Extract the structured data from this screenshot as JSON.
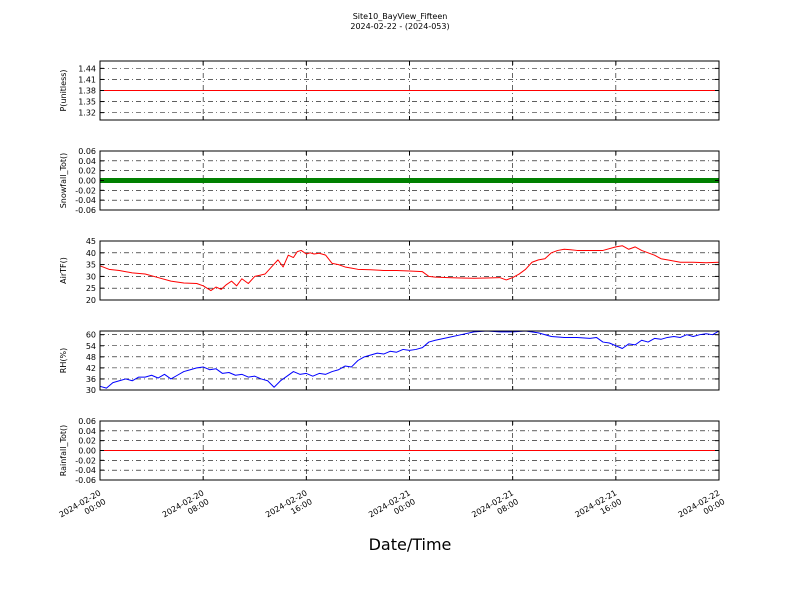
{
  "title": "Site10_BayView_Fifteen",
  "subtitle": "2024-02-22 - (2024-053)",
  "xlabel": "Date/Time",
  "x_ticks": [
    {
      "hours": 0,
      "line1": "2024-02-20",
      "line2": "00:00"
    },
    {
      "hours": 8,
      "line1": "2024-02-20",
      "line2": "08:00"
    },
    {
      "hours": 16,
      "line1": "2024-02-20",
      "line2": "16:00"
    },
    {
      "hours": 24,
      "line1": "2024-02-21",
      "line2": "00:00"
    },
    {
      "hours": 32,
      "line1": "2024-02-21",
      "line2": "08:00"
    },
    {
      "hours": 40,
      "line1": "2024-02-21",
      "line2": "16:00"
    },
    {
      "hours": 48,
      "line1": "2024-02-22",
      "line2": "00:00"
    }
  ],
  "chart_data": [
    {
      "type": "line",
      "ylabel": "P(unitless)",
      "ylim": [
        1.3,
        1.46
      ],
      "yticks": [
        "1.32",
        "1.35",
        "1.38",
        "1.41",
        "1.44"
      ],
      "grid": true,
      "color": "#ff0000",
      "series": [
        {
          "x": [
            0,
            48
          ],
          "y": [
            1.38,
            1.38
          ]
        }
      ]
    },
    {
      "type": "line",
      "ylabel": "Snowfall_Tot()",
      "ylim": [
        -0.06,
        0.06
      ],
      "yticks": [
        "-0.06",
        "-0.04",
        "-0.02",
        "0.00",
        "0.02",
        "0.04",
        "0.06"
      ],
      "grid": true,
      "color": "#008000",
      "marker": "dots",
      "series": [
        {
          "x": [
            0,
            48
          ],
          "y": [
            0,
            0
          ]
        }
      ]
    },
    {
      "type": "line",
      "ylabel": "AirTF()",
      "ylim": [
        20,
        45
      ],
      "yticks": [
        "20",
        "25",
        "30",
        "35",
        "40",
        "45"
      ],
      "grid": true,
      "color": "#ff0000",
      "series": [
        {
          "x": [
            0,
            0.7,
            1.5,
            2.5,
            3.5,
            4.5,
            5.5,
            6.5,
            7.5,
            8,
            8.6,
            9,
            9.4,
            9.8,
            10.2,
            10.6,
            11,
            11.5,
            12,
            12.4,
            12.8,
            13.3,
            13.8,
            14.2,
            14.6,
            15,
            15.3,
            15.6,
            16,
            16.3,
            16.6,
            17,
            17.5,
            18,
            18.5,
            19,
            19.5,
            20,
            21,
            22,
            23,
            24,
            25,
            25.5,
            26,
            27,
            28,
            29,
            30,
            31,
            31.5,
            32,
            32.5,
            33,
            33.5,
            34,
            34.5,
            35,
            35.5,
            36,
            36.5,
            37,
            38,
            39,
            40,
            40.5,
            41,
            41.5,
            42,
            42.5,
            43,
            43.5,
            44,
            45,
            46,
            47,
            48
          ],
          "y": [
            34.5,
            33,
            32.5,
            31.5,
            31,
            29.5,
            28,
            27.2,
            27,
            26,
            24,
            25.5,
            24.5,
            26.5,
            28,
            26,
            29,
            27,
            30,
            30.5,
            31,
            34,
            37,
            34,
            39,
            38,
            40.5,
            41,
            39.5,
            40,
            39.5,
            39.8,
            39,
            35.5,
            35,
            34,
            33.5,
            33,
            32.8,
            32.5,
            32.5,
            32.3,
            32,
            30,
            29.7,
            29.5,
            29.3,
            29.2,
            29.3,
            29.5,
            28.5,
            29.5,
            31,
            33,
            36,
            37,
            37.5,
            40,
            41,
            41.5,
            41.3,
            41,
            41,
            41,
            42.5,
            43,
            41.5,
            42.5,
            41,
            40,
            39,
            37.5,
            37,
            36,
            36,
            35.8,
            36
          ]
        }
      ]
    },
    {
      "type": "line",
      "ylabel": "RH(%)",
      "ylim": [
        30,
        62
      ],
      "yticks": [
        "30",
        "36",
        "42",
        "48",
        "54",
        "60"
      ],
      "grid": true,
      "color": "#0000ff",
      "series": [
        {
          "x": [
            0,
            0.5,
            1,
            1.5,
            2,
            2.5,
            3,
            3.5,
            4,
            4.5,
            5,
            5.5,
            6,
            6.5,
            7,
            7.5,
            8,
            8.5,
            9,
            9.5,
            10,
            10.5,
            11,
            11.5,
            12,
            12.5,
            13,
            13.5,
            14,
            14.5,
            15,
            15.5,
            16,
            16.5,
            17,
            17.5,
            18,
            18.5,
            19,
            19.5,
            20,
            20.5,
            21,
            21.5,
            22,
            22.5,
            23,
            23.5,
            24,
            24.5,
            25,
            25.5,
            26,
            27,
            28,
            29,
            30,
            31,
            32,
            33,
            34,
            35,
            36,
            37,
            38,
            38.5,
            39,
            39.5,
            40,
            40.5,
            41,
            41.5,
            42,
            42.5,
            43,
            43.5,
            44,
            44.5,
            45,
            45.5,
            46,
            46.5,
            47,
            47.5,
            48
          ],
          "y": [
            32,
            31,
            34,
            35,
            36,
            35,
            37,
            37,
            38,
            36.5,
            38.5,
            36,
            38,
            40,
            41,
            42,
            42.5,
            41,
            41.5,
            39,
            39.5,
            38,
            38.5,
            37,
            37.5,
            36,
            35,
            31.5,
            35,
            37.5,
            40,
            38.5,
            39,
            37.5,
            39,
            38.5,
            40,
            41,
            43,
            42.5,
            46,
            48,
            49,
            50,
            49.5,
            51,
            50.5,
            52,
            51.5,
            52,
            53,
            56,
            57,
            58.5,
            60,
            61.5,
            62,
            61.5,
            61.5,
            62,
            61,
            59,
            58.5,
            58.5,
            58,
            58.5,
            56,
            55.5,
            54,
            52.5,
            55,
            54.5,
            57,
            56,
            58,
            57.5,
            58.5,
            59,
            58.5,
            60,
            59,
            60,
            60.5,
            60,
            62
          ]
        }
      ]
    },
    {
      "type": "line",
      "ylabel": "Rainfall_Tot()",
      "ylim": [
        -0.06,
        0.06
      ],
      "yticks": [
        "-0.06",
        "-0.04",
        "-0.02",
        "0.00",
        "0.02",
        "0.04",
        "0.06"
      ],
      "grid": true,
      "color": "#ff0000",
      "series": [
        {
          "x": [
            0,
            48
          ],
          "y": [
            0,
            0
          ]
        }
      ]
    }
  ]
}
